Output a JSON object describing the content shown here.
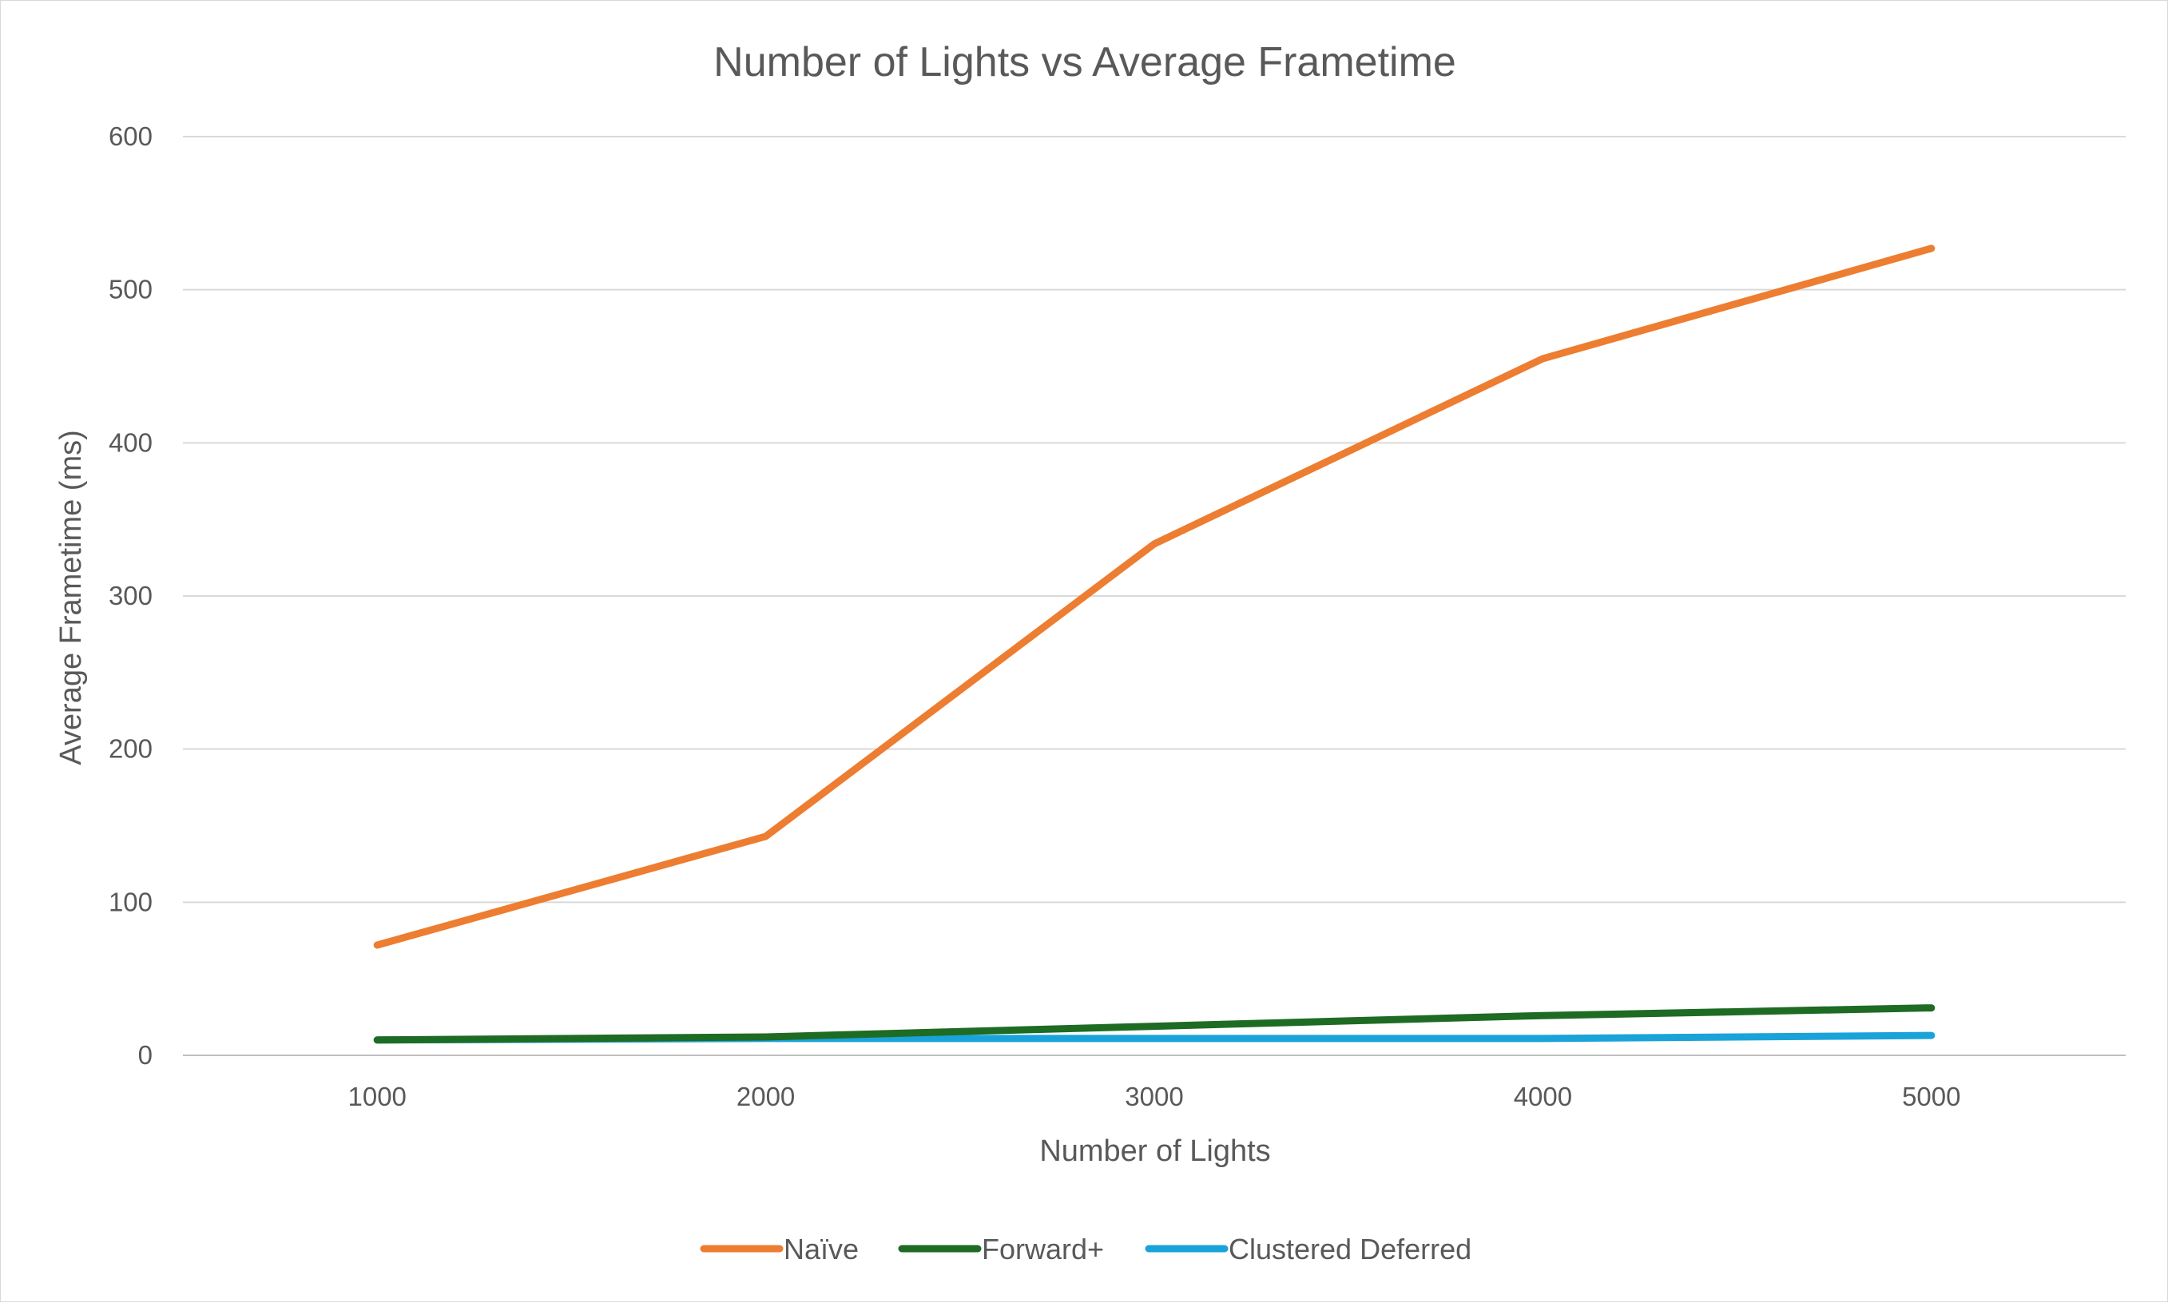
{
  "chart_data": {
    "type": "line",
    "title": "Number of Lights vs Average Frametime",
    "xlabel": "Number of Lights",
    "ylabel": "Average Frametime (ms)",
    "categories": [
      "1000",
      "2000",
      "3000",
      "4000",
      "5000"
    ],
    "ylim": [
      0,
      600
    ],
    "yticks": [
      "0",
      "100",
      "200",
      "300",
      "400",
      "500",
      "600"
    ],
    "grid": true,
    "legend_position": "bottom",
    "series": [
      {
        "name": "Naïve",
        "color": "#ed7d31",
        "values": [
          72,
          143,
          334,
          455,
          527
        ]
      },
      {
        "name": "Forward+",
        "color": "#1e6b24",
        "values": [
          10,
          12,
          19,
          26,
          31
        ]
      },
      {
        "name": "Clustered Deferred",
        "color": "#1aa3d9",
        "values": [
          10,
          11,
          11,
          11,
          13
        ]
      }
    ]
  }
}
